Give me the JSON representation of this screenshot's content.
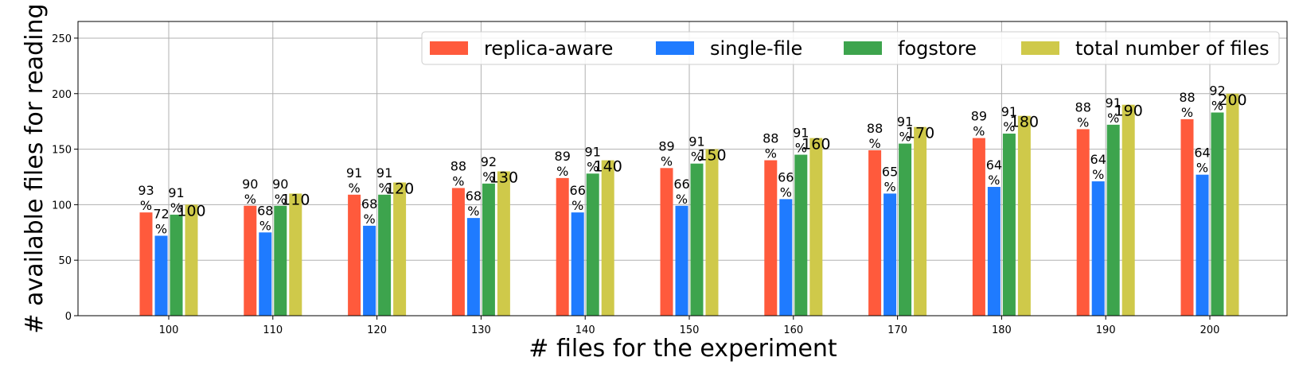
{
  "chart_data": {
    "type": "bar",
    "xlabel": "# files for the experiment",
    "ylabel": "# available files for reading",
    "ylim": [
      0,
      265
    ],
    "yticks": [
      0,
      50,
      100,
      150,
      200,
      250
    ],
    "grid": true,
    "legend_position": "top-right",
    "categories": [
      "100",
      "110",
      "120",
      "130",
      "140",
      "150",
      "160",
      "170",
      "180",
      "190",
      "200"
    ],
    "series": [
      {
        "name": "replica-aware",
        "color": "#FF5A3C",
        "values": [
          93,
          99,
          109,
          115,
          124,
          133,
          140,
          149,
          160,
          168,
          177
        ],
        "labels": [
          "93\n%",
          "90\n%",
          "91\n%",
          "88\n%",
          "89\n%",
          "89\n%",
          "88\n%",
          "88\n%",
          "89\n%",
          "88\n%",
          "88\n%"
        ]
      },
      {
        "name": "single-file",
        "color": "#1F7BFF",
        "values": [
          72,
          75,
          81,
          88,
          93,
          99,
          105,
          110,
          116,
          121,
          127
        ],
        "labels": [
          "72\n%",
          "68\n%",
          "68\n%",
          "68\n%",
          "66\n%",
          "66\n%",
          "66\n%",
          "65\n%",
          "64\n%",
          "64\n%",
          "64\n%"
        ]
      },
      {
        "name": "fogstore",
        "color": "#3DA44D",
        "values": [
          91,
          99,
          109,
          119,
          128,
          137,
          145,
          155,
          164,
          172,
          183
        ],
        "labels": [
          "91\n%",
          "90\n%",
          "91\n%",
          "92\n%",
          "91\n%",
          "91\n%",
          "91\n%",
          "91\n%",
          "91\n%",
          "91\n%",
          "92\n%"
        ]
      },
      {
        "name": "total number of files",
        "color": "#CFC94A",
        "values": [
          100,
          110,
          120,
          130,
          140,
          150,
          160,
          170,
          180,
          190,
          200
        ],
        "labels": [
          "100",
          "110",
          "120",
          "130",
          "140",
          "150",
          "160",
          "170",
          "180",
          "190",
          "200"
        ]
      }
    ]
  }
}
